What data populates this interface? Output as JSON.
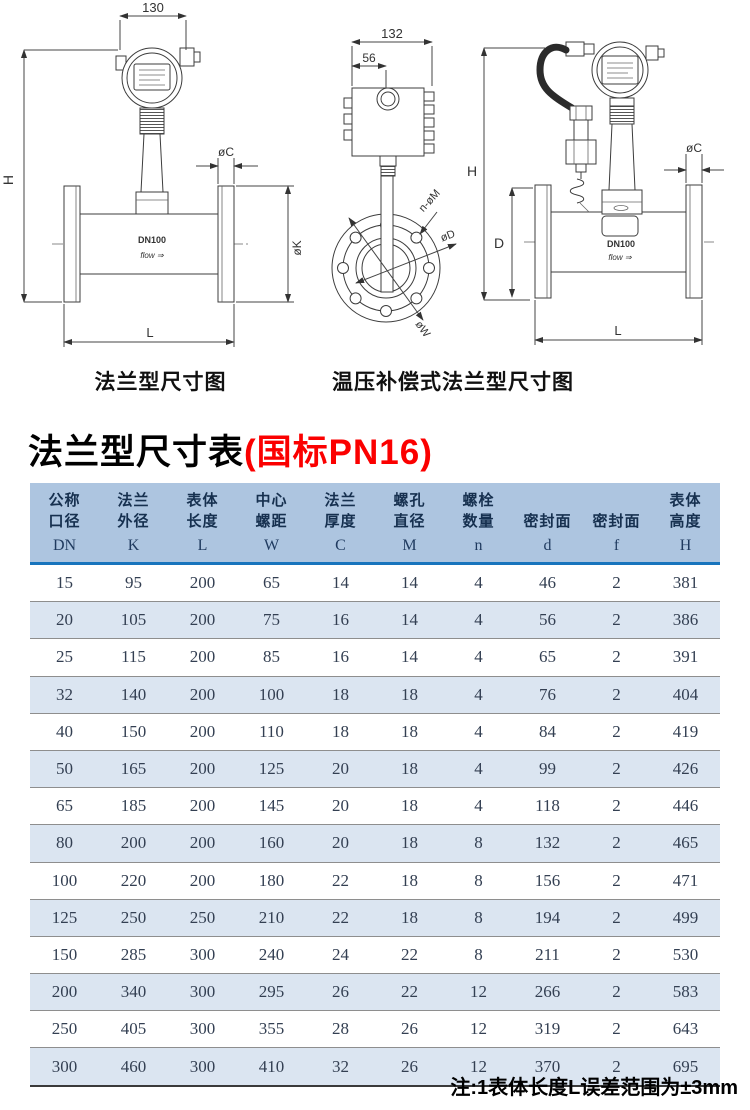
{
  "title": {
    "main": "法兰型尺寸表",
    "sub": "(国标PN16)"
  },
  "captions": {
    "left": "法兰型尺寸图",
    "right": "温压补偿式法兰型尺寸图"
  },
  "drawings": {
    "left": {
      "dim_width": "130",
      "dim_height": "H",
      "dim_flange_thickness": "øC",
      "dim_flange_diameter": "øK",
      "dim_length": "L",
      "body_label": "DN100",
      "flow_label": "flow ⇒"
    },
    "middle": {
      "dim_width": "132",
      "dim_offset": "56",
      "bolt_holes_label": "n-øM",
      "bore_label": "øD",
      "pitch_label": "øW"
    },
    "right": {
      "dim_height": "H",
      "dim_body_height": "D",
      "dim_flange_thickness": "øC",
      "dim_length": "L",
      "body_label": "DN100",
      "flow_label": "flow ⇒"
    }
  },
  "table": {
    "headers": [
      {
        "cn1": "公称",
        "cn2": "口径",
        "code": "DN"
      },
      {
        "cn1": "法兰",
        "cn2": "外径",
        "code": "K"
      },
      {
        "cn1": "表体",
        "cn2": "长度",
        "code": "L"
      },
      {
        "cn1": "中心",
        "cn2": "螺距",
        "code": "W"
      },
      {
        "cn1": "法兰",
        "cn2": "厚度",
        "code": "C"
      },
      {
        "cn1": "螺孔",
        "cn2": "直径",
        "code": "M"
      },
      {
        "cn1": "螺栓",
        "cn2": "数量",
        "code": "n"
      },
      {
        "cn1": "",
        "cn2": "密封面",
        "code": "d"
      },
      {
        "cn1": "",
        "cn2": "密封面",
        "code": "f"
      },
      {
        "cn1": "表体",
        "cn2": "高度",
        "code": "H"
      }
    ],
    "rows": [
      [
        15,
        95,
        200,
        65,
        14,
        14,
        4,
        46,
        2,
        381
      ],
      [
        20,
        105,
        200,
        75,
        16,
        14,
        4,
        56,
        2,
        386
      ],
      [
        25,
        115,
        200,
        85,
        16,
        14,
        4,
        65,
        2,
        391
      ],
      [
        32,
        140,
        200,
        100,
        18,
        18,
        4,
        76,
        2,
        404
      ],
      [
        40,
        150,
        200,
        110,
        18,
        18,
        4,
        84,
        2,
        419
      ],
      [
        50,
        165,
        200,
        125,
        20,
        18,
        4,
        99,
        2,
        426
      ],
      [
        65,
        185,
        200,
        145,
        20,
        18,
        4,
        118,
        2,
        446
      ],
      [
        80,
        200,
        200,
        160,
        20,
        18,
        8,
        132,
        2,
        465
      ],
      [
        100,
        220,
        200,
        180,
        22,
        18,
        8,
        156,
        2,
        471
      ],
      [
        125,
        250,
        250,
        210,
        22,
        18,
        8,
        194,
        2,
        499
      ],
      [
        150,
        285,
        300,
        240,
        24,
        22,
        8,
        211,
        2,
        530
      ],
      [
        200,
        340,
        300,
        295,
        26,
        22,
        12,
        266,
        2,
        583
      ],
      [
        250,
        405,
        300,
        355,
        28,
        26,
        12,
        319,
        2,
        643
      ],
      [
        300,
        460,
        300,
        410,
        32,
        26,
        12,
        370,
        2,
        695
      ]
    ]
  },
  "note": "注:1表体长度L误差范围为±3mm",
  "colors": {
    "accent_red": "#fb0000",
    "header_bg": "#adc5e0",
    "row_alt_bg": "#dbe5f1",
    "header_rule": "#1874bd",
    "text_navy": "#16304f"
  }
}
